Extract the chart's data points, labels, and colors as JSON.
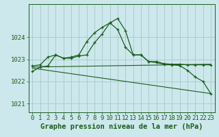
{
  "xlabel": "Graphe pression niveau de la mer (hPa)",
  "bg_color": "#cce8ec",
  "grid_color": "#aacccc",
  "line_color": "#1a5c1a",
  "ylim": [
    1020.6,
    1025.5
  ],
  "xlim": [
    -0.5,
    23.5
  ],
  "yticks": [
    1021,
    1022,
    1023,
    1024
  ],
  "xticks": [
    0,
    1,
    2,
    3,
    4,
    5,
    6,
    7,
    8,
    9,
    10,
    11,
    12,
    13,
    14,
    15,
    16,
    17,
    18,
    19,
    20,
    21,
    22,
    23
  ],
  "series1_x": [
    0,
    1,
    2,
    3,
    4,
    5,
    6,
    7,
    8,
    9,
    10,
    11,
    12,
    13,
    14,
    15,
    16,
    17,
    18,
    19,
    20,
    21,
    22,
    23
  ],
  "series1_y": [
    1022.7,
    1022.75,
    1023.1,
    1023.2,
    1023.05,
    1023.1,
    1023.2,
    1023.8,
    1024.2,
    1024.45,
    1024.65,
    1024.35,
    1023.55,
    1023.2,
    1023.2,
    1022.9,
    1022.9,
    1022.8,
    1022.78,
    1022.78,
    1022.75,
    1022.75,
    1022.75,
    1022.75
  ],
  "series2_x": [
    0,
    1,
    2,
    3,
    4,
    5,
    6,
    7,
    8,
    9,
    10,
    11,
    12,
    13,
    14,
    15,
    16,
    17,
    18,
    19,
    20,
    21,
    22,
    23
  ],
  "series2_y": [
    1022.45,
    1022.65,
    1022.7,
    1023.2,
    1023.05,
    1023.05,
    1023.15,
    1023.2,
    1023.75,
    1024.15,
    1024.65,
    1024.85,
    1024.3,
    1023.2,
    1023.2,
    1022.9,
    1022.85,
    1022.78,
    1022.75,
    1022.72,
    1022.5,
    1022.2,
    1022.0,
    1021.45
  ],
  "series3_x": [
    0,
    23
  ],
  "series3_y": [
    1022.65,
    1022.78
  ],
  "series4_x": [
    0,
    23
  ],
  "series4_y": [
    1022.6,
    1021.45
  ],
  "font_color": "#1a5c1a",
  "tick_fontsize": 6.5,
  "label_fontsize": 7.5
}
